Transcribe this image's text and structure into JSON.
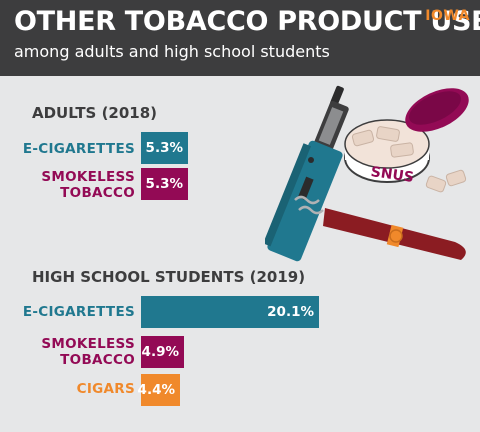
{
  "header": {
    "title": "OTHER TOBACCO PRODUCT USE",
    "subtitle": "among adults and high school students",
    "state": "IOWA"
  },
  "illustration": {
    "snus_label": "SNUS"
  },
  "colors": {
    "e_cigarettes": "#20788f",
    "smokeless": "#930a55",
    "cigars": "#f0892b",
    "header_bg": "#3d3d3e",
    "background": "#e6e7e8"
  },
  "chart_data": [
    {
      "type": "bar",
      "title": "ADULTS (2018)",
      "categories": [
        "E-CIGARETTES",
        "SMOKELESS\nTOBACCO"
      ],
      "values": [
        5.3,
        5.3
      ],
      "value_labels": [
        "5.3%",
        "5.3%"
      ],
      "unit": "%",
      "orientation": "horizontal",
      "xlim": [
        0,
        20.1
      ]
    },
    {
      "type": "bar",
      "title": "HIGH SCHOOL STUDENTS (2019)",
      "categories": [
        "E-CIGARETTES",
        "SMOKELESS\nTOBACCO",
        "CIGARS"
      ],
      "values": [
        20.1,
        4.9,
        4.4
      ],
      "value_labels": [
        "20.1%",
        "4.9%",
        "4.4%"
      ],
      "unit": "%",
      "orientation": "horizontal",
      "xlim": [
        0,
        20.1
      ]
    }
  ]
}
